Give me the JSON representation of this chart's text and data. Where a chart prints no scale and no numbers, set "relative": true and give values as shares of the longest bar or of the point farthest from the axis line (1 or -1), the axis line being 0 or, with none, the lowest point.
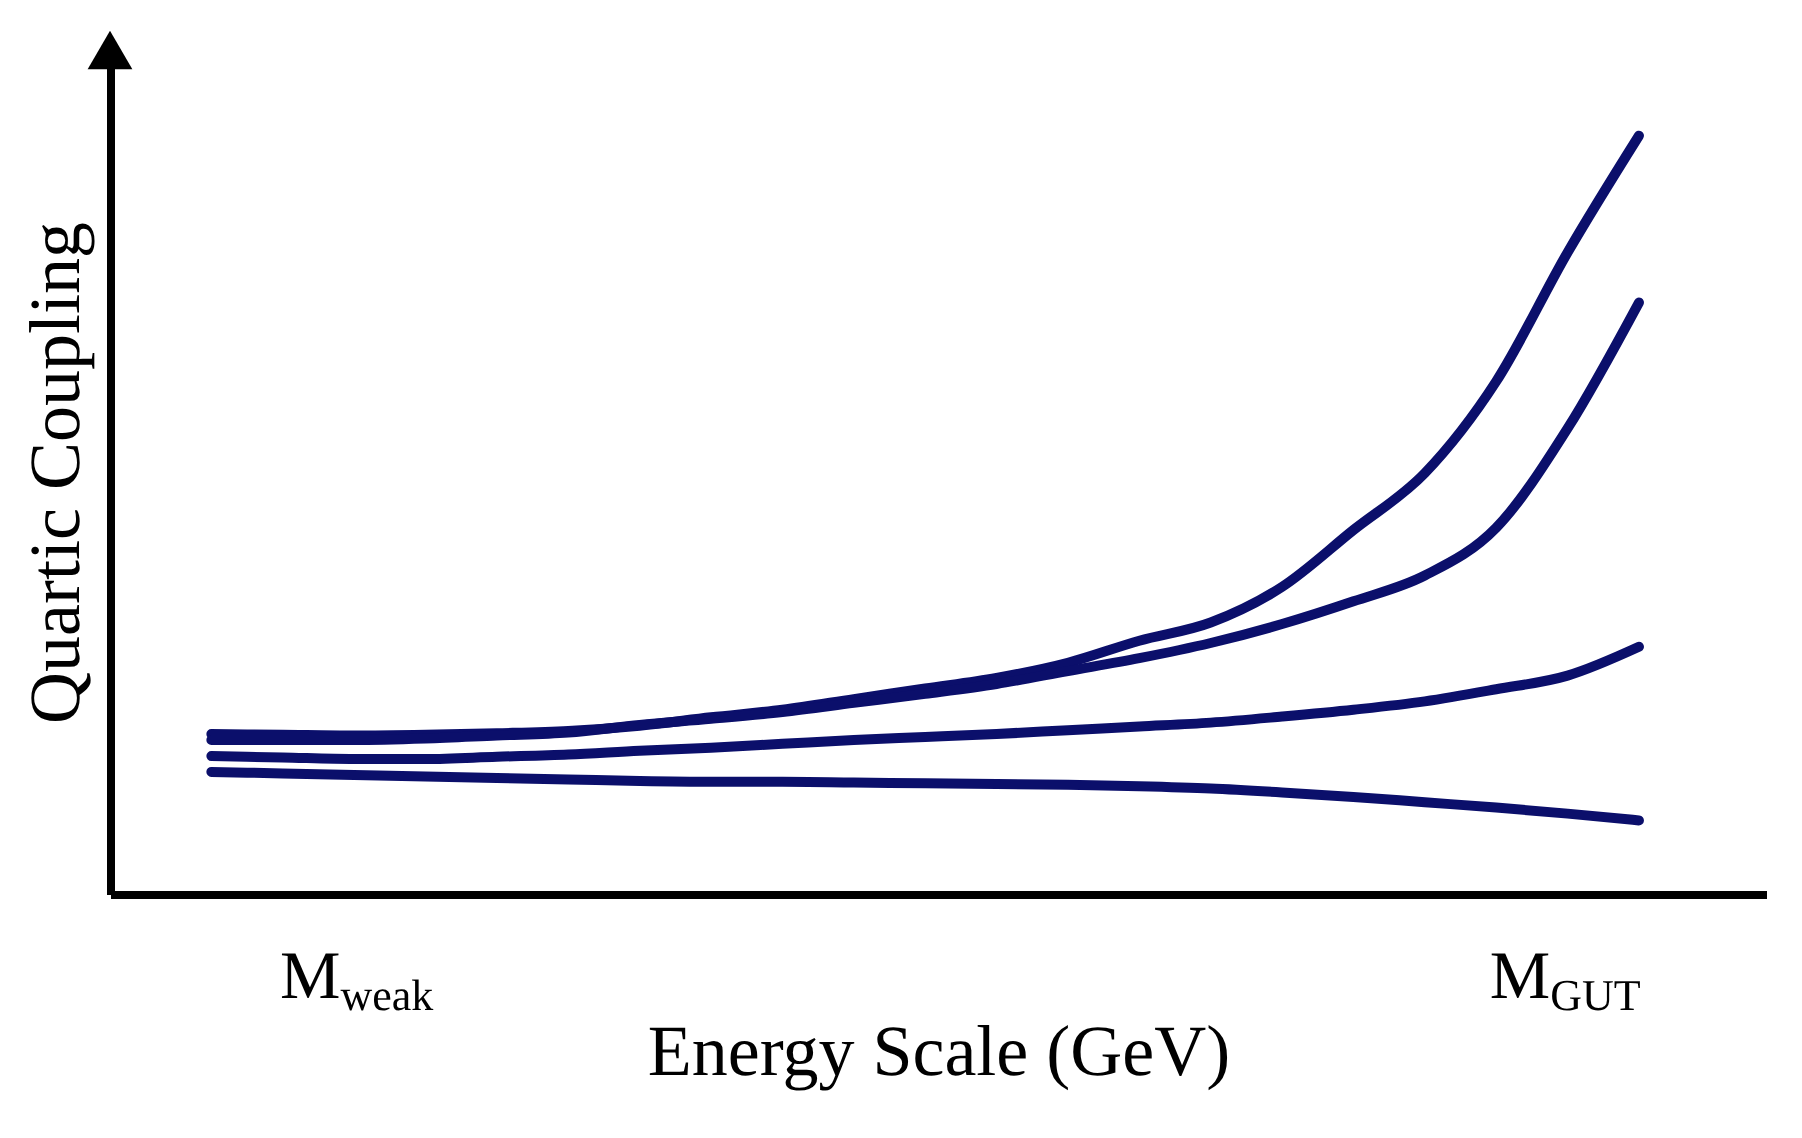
{
  "chart_data": {
    "type": "line",
    "relative": true,
    "xlabel": "Energy Scale (GeV)",
    "ylabel": "Quartic Coupling",
    "categories": [
      null,
      null,
      "M$_{weak}$",
      null,
      null,
      null,
      null,
      null,
      null,
      null,
      null,
      null,
      null,
      null,
      null,
      null,
      null,
      null,
      null,
      "M$_{GUT}$",
      null
    ],
    "legend": false,
    "marker": "none",
    "line_style": "solid",
    "series": [
      {
        "color": "#0b0f6b",
        "values": [
          0.211,
          0.21,
          0.209,
          0.21,
          0.212,
          0.215,
          0.222,
          0.233,
          0.243,
          0.257,
          0.271,
          0.285,
          0.305,
          0.334,
          0.358,
          0.405,
          0.48,
          0.555,
          0.676,
          0.846,
          1.0
        ]
      },
      {
        "color": "#0b0f6b",
        "values": [
          0.203,
          0.203,
          0.203,
          0.205,
          0.209,
          0.213,
          0.223,
          0.231,
          0.24,
          0.252,
          0.264,
          0.277,
          0.294,
          0.311,
          0.331,
          0.356,
          0.386,
          0.42,
          0.483,
          0.614,
          0.78
        ]
      },
      {
        "color": "#0b0f6b",
        "values": [
          0.182,
          0.18,
          0.178,
          0.178,
          0.181,
          0.184,
          0.189,
          0.193,
          0.198,
          0.203,
          0.207,
          0.211,
          0.216,
          0.221,
          0.226,
          0.234,
          0.243,
          0.254,
          0.27,
          0.288,
          0.326
        ]
      },
      {
        "color": "#0b0f6b",
        "values": [
          0.161,
          0.159,
          0.157,
          0.155,
          0.153,
          0.151,
          0.149,
          0.148,
          0.148,
          0.147,
          0.146,
          0.145,
          0.144,
          0.142,
          0.139,
          0.134,
          0.128,
          0.121,
          0.114,
          0.106,
          0.097
        ]
      }
    ]
  }
}
